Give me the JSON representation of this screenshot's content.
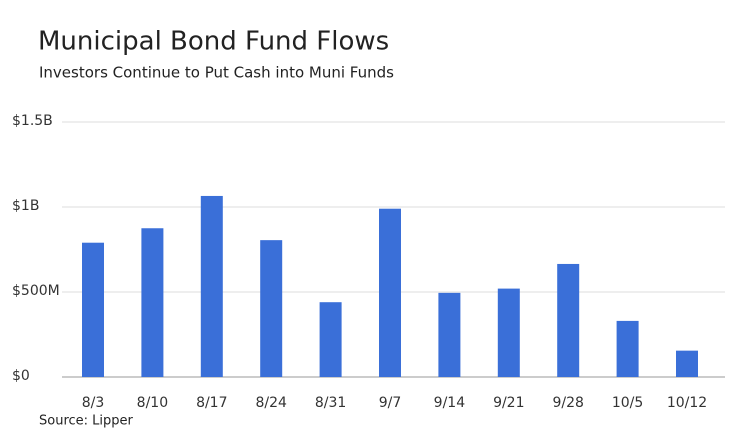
{
  "chart_data": {
    "type": "bar",
    "title": "Municipal Bond Fund Flows",
    "subtitle": "Investors Continue to Put Cash into Muni Funds",
    "source": "Source: Lipper",
    "categories": [
      "8/3",
      "8/10",
      "8/17",
      "8/24",
      "8/31",
      "9/7",
      "9/14",
      "9/21",
      "9/28",
      "10/5",
      "10/12"
    ],
    "values": [
      790000000,
      875000000,
      1065000000,
      805000000,
      440000000,
      990000000,
      495000000,
      520000000,
      665000000,
      330000000,
      155000000
    ],
    "color": "#3a6fd8",
    "ylim": [
      0,
      1500000000
    ],
    "yticks": [
      {
        "value": 0,
        "label": "$0"
      },
      {
        "value": 500000000,
        "label": "$500M"
      },
      {
        "value": 1000000000,
        "label": "$1B"
      },
      {
        "value": 1500000000,
        "label": "$1.5B"
      }
    ],
    "grid": true
  }
}
